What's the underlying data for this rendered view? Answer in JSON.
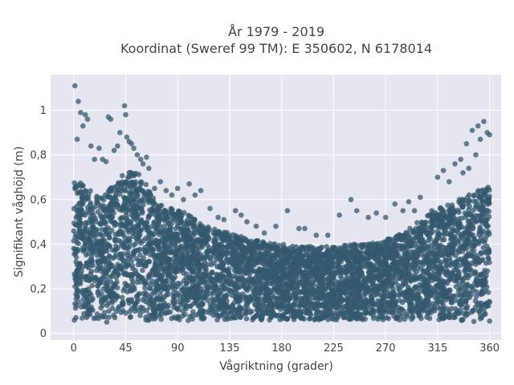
{
  "chart_data": {
    "type": "scatter",
    "title_line1": "År 1979 - 2019",
    "title_line2": "Koordinat (Sweref 99 TM): E 350602, N 6178014",
    "xlabel": "Vågriktning (grader)",
    "ylabel": "Signifikant våghöjd (m)",
    "xlim": [
      -20,
      370
    ],
    "ylim": [
      -0.03,
      1.16
    ],
    "x_ticks": [
      0,
      45,
      90,
      135,
      180,
      225,
      270,
      315,
      360
    ],
    "x_tick_labels": [
      "0",
      "45",
      "90",
      "135",
      "180",
      "225",
      "270",
      "315",
      "360"
    ],
    "y_ticks": [
      0,
      0.2,
      0.4,
      0.6,
      0.8,
      1
    ],
    "y_tick_labels": [
      "0",
      "0,2",
      "0,4",
      "0,6",
      "0,8",
      "1"
    ],
    "grid": true,
    "marker_color": "#34586e",
    "plot_background": "#e5e6ef",
    "upper_envelope": {
      "x": [
        0,
        10,
        20,
        30,
        40,
        45,
        50,
        55,
        60,
        70,
        80,
        90,
        100,
        110,
        120,
        135,
        150,
        165,
        180,
        195,
        210,
        225,
        240,
        255,
        270,
        285,
        300,
        315,
        330,
        345,
        360
      ],
      "y": [
        0.7,
        0.66,
        0.62,
        0.64,
        0.7,
        0.72,
        0.73,
        0.72,
        0.7,
        0.6,
        0.56,
        0.56,
        0.53,
        0.49,
        0.47,
        0.45,
        0.43,
        0.41,
        0.4,
        0.39,
        0.39,
        0.39,
        0.4,
        0.4,
        0.42,
        0.45,
        0.51,
        0.56,
        0.59,
        0.63,
        0.66
      ]
    },
    "lower_envelope": {
      "x": [
        0,
        60,
        120,
        180,
        240,
        300,
        360
      ],
      "y": [
        0.05,
        0.05,
        0.06,
        0.06,
        0.06,
        0.06,
        0.05
      ]
    },
    "outliers": {
      "x": [
        1,
        4,
        8,
        10,
        3,
        6,
        12,
        15,
        18,
        22,
        25,
        28,
        30,
        32,
        35,
        38,
        40,
        44,
        45,
        46,
        48,
        50,
        52,
        55,
        58,
        60,
        63,
        65,
        70,
        75,
        80,
        85,
        90,
        95,
        100,
        105,
        110,
        118,
        125,
        130,
        140,
        145,
        150,
        158,
        165,
        175,
        185,
        195,
        200,
        210,
        220,
        230,
        240,
        245,
        255,
        262,
        270,
        278,
        285,
        290,
        295,
        300,
        310,
        315,
        320,
        325,
        330,
        335,
        340,
        345,
        350,
        352,
        355,
        358,
        360,
        348,
        342,
        337
      ],
      "y": [
        1.11,
        1.04,
        0.93,
        0.98,
        0.87,
        0.99,
        0.96,
        0.84,
        0.78,
        0.83,
        0.78,
        0.77,
        0.97,
        0.96,
        0.82,
        0.84,
        0.9,
        1.02,
        0.98,
        0.88,
        0.86,
        0.85,
        0.83,
        0.8,
        0.78,
        0.76,
        0.79,
        0.74,
        0.65,
        0.68,
        0.64,
        0.62,
        0.65,
        0.6,
        0.67,
        0.62,
        0.64,
        0.56,
        0.52,
        0.51,
        0.55,
        0.53,
        0.5,
        0.48,
        0.45,
        0.48,
        0.55,
        0.47,
        0.47,
        0.44,
        0.44,
        0.53,
        0.6,
        0.55,
        0.52,
        0.54,
        0.52,
        0.58,
        0.55,
        0.59,
        0.55,
        0.61,
        0.55,
        0.7,
        0.73,
        0.68,
        0.76,
        0.78,
        0.85,
        0.91,
        0.93,
        0.87,
        0.95,
        0.9,
        0.89,
        0.8,
        0.74,
        0.72
      ]
    }
  }
}
